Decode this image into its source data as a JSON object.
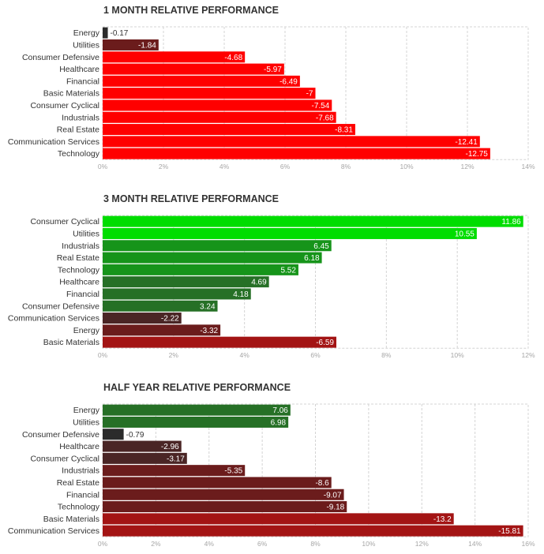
{
  "colors": {
    "red_bright": "#ff0000",
    "red_dark": "#a31414",
    "maroon": "#6b1c1c",
    "brown_dark": "#4a2525",
    "near_black": "#2b2b2b",
    "green_bright": "#00dd00",
    "green_mid": "#16941a",
    "green_dark": "#267026",
    "grid": "#d4d4d4",
    "tick": "#a6a6a6",
    "text": "#333333"
  },
  "chart_data": [
    {
      "type": "bar",
      "orientation": "horizontal",
      "title": "1 MONTH RELATIVE PERFORMANCE",
      "categories": [
        "Energy",
        "Utilities",
        "Consumer Defensive",
        "Healthcare",
        "Financial",
        "Basic Materials",
        "Consumer Cyclical",
        "Industrials",
        "Real Estate",
        "Communication Services",
        "Technology"
      ],
      "values": [
        -0.17,
        -1.84,
        -4.68,
        -5.97,
        -6.49,
        -7,
        -7.54,
        -7.68,
        -8.31,
        -12.41,
        -12.75
      ],
      "value_labels": [
        "-0.17",
        "-1.84",
        "-4.68",
        "-5.97",
        "-6.49",
        "-7",
        "-7.54",
        "-7.68",
        "-8.31",
        "-12.41",
        "-12.75"
      ],
      "bar_colors": [
        "#2b2b2b",
        "#6b1c1c",
        "#ff0000",
        "#ff0000",
        "#ff0000",
        "#ff0000",
        "#ff0000",
        "#ff0000",
        "#ff0000",
        "#ff0000",
        "#ff0000"
      ],
      "xlim": [
        0,
        14
      ],
      "ticks": [
        "0%",
        "2%",
        "4%",
        "6%",
        "8%",
        "10%",
        "12%",
        "14%"
      ],
      "grid": true
    },
    {
      "type": "bar",
      "orientation": "horizontal",
      "title": "3 MONTH RELATIVE PERFORMANCE",
      "categories": [
        "Consumer Cyclical",
        "Utilities",
        "Industrials",
        "Real Estate",
        "Technology",
        "Healthcare",
        "Financial",
        "Consumer Defensive",
        "Communication Services",
        "Energy",
        "Basic Materials"
      ],
      "values": [
        11.86,
        10.55,
        6.45,
        6.18,
        5.52,
        4.69,
        4.18,
        3.24,
        -2.22,
        -3.32,
        -6.59
      ],
      "value_labels": [
        "11.86",
        "10.55",
        "6.45",
        "6.18",
        "5.52",
        "4.69",
        "4.18",
        "3.24",
        "-2.22",
        "-3.32",
        "-6.59"
      ],
      "bar_colors": [
        "#00dd00",
        "#00dd00",
        "#16941a",
        "#16941a",
        "#16941a",
        "#267026",
        "#267026",
        "#267026",
        "#4a2525",
        "#6b1c1c",
        "#a31414"
      ],
      "xlim": [
        0,
        12
      ],
      "ticks": [
        "0%",
        "2%",
        "4%",
        "6%",
        "8%",
        "10%",
        "12%"
      ],
      "grid": true
    },
    {
      "type": "bar",
      "orientation": "horizontal",
      "title": "HALF YEAR RELATIVE PERFORMANCE",
      "categories": [
        "Energy",
        "Utilities",
        "Consumer Defensive",
        "Healthcare",
        "Consumer Cyclical",
        "Industrials",
        "Real Estate",
        "Financial",
        "Technology",
        "Basic Materials",
        "Communication Services"
      ],
      "values": [
        7.06,
        6.98,
        -0.79,
        -2.96,
        -3.17,
        -5.35,
        -8.6,
        -9.07,
        -9.18,
        -13.2,
        -15.81
      ],
      "value_labels": [
        "7.06",
        "6.98",
        "-0.79",
        "-2.96",
        "-3.17",
        "-5.35",
        "-8.6",
        "-9.07",
        "-9.18",
        "-13.2",
        "-15.81"
      ],
      "bar_colors": [
        "#267026",
        "#267026",
        "#2b2b2b",
        "#4a2525",
        "#4a2525",
        "#6b1c1c",
        "#6b1c1c",
        "#6b1c1c",
        "#6b1c1c",
        "#a31414",
        "#a31414"
      ],
      "xlim": [
        0,
        16
      ],
      "ticks": [
        "0%",
        "2%",
        "4%",
        "6%",
        "8%",
        "10%",
        "12%",
        "14%",
        "16%"
      ],
      "grid": true
    }
  ]
}
